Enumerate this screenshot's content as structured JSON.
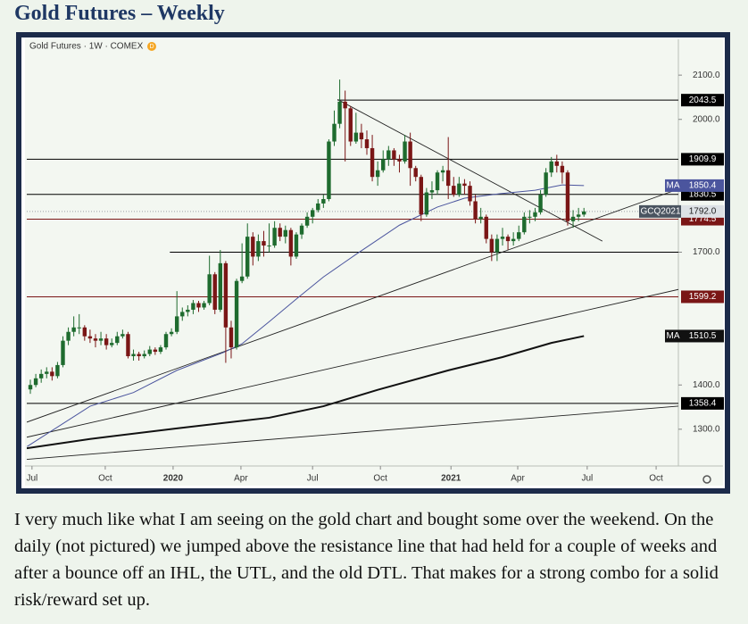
{
  "title": "Gold Futures – Weekly",
  "paragraph": "I very much like what I am seeing on the gold chart and bought some over the weekend. On the daily (not pictured) we jumped above the resistance line that had held for a couple of weeks and after a bounce off an IHL, the UTL, and the old DTL. That makes for a strong combo for a solid risk/reward set up.",
  "chart_data": {
    "type": "candlestick",
    "header": "Gold Futures · 1W · COMEX",
    "badge": "D",
    "up_color": "#1e6b2e",
    "down_color": "#7a1616",
    "ohlc": [
      [
        1390,
        1412,
        1380,
        1400
      ],
      [
        1400,
        1425,
        1395,
        1415
      ],
      [
        1415,
        1435,
        1405,
        1425
      ],
      [
        1425,
        1440,
        1415,
        1430
      ],
      [
        1430,
        1440,
        1410,
        1420
      ],
      [
        1420,
        1452,
        1415,
        1445
      ],
      [
        1445,
        1510,
        1440,
        1500
      ],
      [
        1500,
        1530,
        1490,
        1520
      ],
      [
        1520,
        1555,
        1510,
        1530
      ],
      [
        1530,
        1560,
        1515,
        1530
      ],
      [
        1530,
        1535,
        1500,
        1510
      ],
      [
        1510,
        1525,
        1495,
        1505
      ],
      [
        1505,
        1515,
        1485,
        1500
      ],
      [
        1500,
        1520,
        1490,
        1505
      ],
      [
        1505,
        1515,
        1480,
        1490
      ],
      [
        1490,
        1505,
        1485,
        1495
      ],
      [
        1495,
        1520,
        1490,
        1510
      ],
      [
        1510,
        1525,
        1505,
        1515
      ],
      [
        1515,
        1520,
        1460,
        1465
      ],
      [
        1465,
        1480,
        1455,
        1470
      ],
      [
        1470,
        1475,
        1455,
        1465
      ],
      [
        1465,
        1478,
        1460,
        1470
      ],
      [
        1470,
        1488,
        1465,
        1480
      ],
      [
        1480,
        1485,
        1468,
        1475
      ],
      [
        1475,
        1490,
        1470,
        1485
      ],
      [
        1485,
        1520,
        1480,
        1515
      ],
      [
        1515,
        1528,
        1510,
        1520
      ],
      [
        1520,
        1612,
        1515,
        1555
      ],
      [
        1555,
        1575,
        1545,
        1565
      ],
      [
        1565,
        1580,
        1555,
        1570
      ],
      [
        1570,
        1592,
        1560,
        1585
      ],
      [
        1585,
        1590,
        1565,
        1575
      ],
      [
        1575,
        1590,
        1570,
        1585
      ],
      [
        1585,
        1692,
        1580,
        1650
      ],
      [
        1650,
        1655,
        1560,
        1570
      ],
      [
        1570,
        1705,
        1565,
        1675
      ],
      [
        1675,
        1680,
        1450,
        1530
      ],
      [
        1530,
        1545,
        1460,
        1485
      ],
      [
        1485,
        1640,
        1480,
        1635
      ],
      [
        1635,
        1720,
        1630,
        1645
      ],
      [
        1645,
        1765,
        1640,
        1735
      ],
      [
        1735,
        1745,
        1670,
        1690
      ],
      [
        1690,
        1740,
        1680,
        1725
      ],
      [
        1725,
        1748,
        1690,
        1715
      ],
      [
        1715,
        1765,
        1700,
        1715
      ],
      [
        1715,
        1770,
        1710,
        1755
      ],
      [
        1755,
        1765,
        1725,
        1735
      ],
      [
        1735,
        1760,
        1720,
        1750
      ],
      [
        1750,
        1755,
        1670,
        1690
      ],
      [
        1690,
        1745,
        1685,
        1740
      ],
      [
        1740,
        1765,
        1730,
        1760
      ],
      [
        1760,
        1790,
        1755,
        1780
      ],
      [
        1780,
        1800,
        1765,
        1795
      ],
      [
        1795,
        1820,
        1790,
        1810
      ],
      [
        1810,
        1830,
        1800,
        1820
      ],
      [
        1820,
        1955,
        1815,
        1950
      ],
      [
        1950,
        2020,
        1940,
        1990
      ],
      [
        1990,
        2090,
        1980,
        2040
      ],
      [
        2040,
        2065,
        1905,
        2025
      ],
      [
        2025,
        2030,
        1940,
        1950
      ],
      [
        1950,
        2015,
        1945,
        1970
      ],
      [
        1970,
        1990,
        1935,
        1955
      ],
      [
        1955,
        1975,
        1920,
        1935
      ],
      [
        1935,
        1965,
        1860,
        1870
      ],
      [
        1870,
        1905,
        1850,
        1885
      ],
      [
        1885,
        1930,
        1880,
        1910
      ],
      [
        1910,
        1940,
        1895,
        1930
      ],
      [
        1930,
        1935,
        1895,
        1910
      ],
      [
        1910,
        1920,
        1880,
        1905
      ],
      [
        1905,
        1965,
        1900,
        1950
      ],
      [
        1950,
        1970,
        1850,
        1890
      ],
      [
        1890,
        1895,
        1860,
        1870
      ],
      [
        1870,
        1875,
        1770,
        1785
      ],
      [
        1785,
        1845,
        1780,
        1835
      ],
      [
        1835,
        1860,
        1820,
        1840
      ],
      [
        1840,
        1885,
        1830,
        1880
      ],
      [
        1880,
        1895,
        1860,
        1885
      ],
      [
        1885,
        1960,
        1820,
        1850
      ],
      [
        1850,
        1870,
        1825,
        1830
      ],
      [
        1830,
        1870,
        1825,
        1855
      ],
      [
        1855,
        1865,
        1830,
        1850
      ],
      [
        1850,
        1860,
        1805,
        1815
      ],
      [
        1815,
        1830,
        1765,
        1775
      ],
      [
        1775,
        1800,
        1765,
        1780
      ],
      [
        1780,
        1785,
        1720,
        1730
      ],
      [
        1730,
        1740,
        1680,
        1700
      ],
      [
        1700,
        1740,
        1680,
        1730
      ],
      [
        1730,
        1755,
        1715,
        1735
      ],
      [
        1735,
        1740,
        1705,
        1725
      ],
      [
        1725,
        1745,
        1715,
        1730
      ],
      [
        1730,
        1760,
        1725,
        1745
      ],
      [
        1745,
        1790,
        1740,
        1780
      ],
      [
        1780,
        1795,
        1765,
        1780
      ],
      [
        1780,
        1800,
        1770,
        1790
      ],
      [
        1790,
        1840,
        1785,
        1830
      ],
      [
        1830,
        1890,
        1825,
        1880
      ],
      [
        1880,
        1915,
        1870,
        1905
      ],
      [
        1905,
        1920,
        1880,
        1895
      ],
      [
        1895,
        1905,
        1855,
        1880
      ],
      [
        1880,
        1885,
        1760,
        1770
      ],
      [
        1770,
        1795,
        1755,
        1780
      ],
      [
        1780,
        1800,
        1770,
        1785
      ],
      [
        1785,
        1800,
        1780,
        1792
      ]
    ],
    "xlim": [
      -0.66,
      119.4
    ],
    "xticks": [
      {
        "value": 0.3,
        "label": "Jul"
      },
      {
        "value": 13.8,
        "label": "Oct"
      },
      {
        "value": 26.3,
        "label": "2020"
      },
      {
        "value": 38.8,
        "label": "Apr"
      },
      {
        "value": 52,
        "label": "Jul"
      },
      {
        "value": 64.5,
        "label": "Oct"
      },
      {
        "value": 77.5,
        "label": "2021"
      },
      {
        "value": 89.8,
        "label": "Apr"
      },
      {
        "value": 102.6,
        "label": "Jul"
      },
      {
        "value": 115.3,
        "label": "Oct"
      }
    ],
    "ylim": [
      1221,
      2185
    ],
    "yticks": [
      {
        "value": 2100,
        "label": "2100.0"
      },
      {
        "value": 2000,
        "label": "2000.0"
      },
      {
        "value": 1700,
        "label": "1700.0"
      },
      {
        "value": 1400,
        "label": "1400.0"
      },
      {
        "value": 1300,
        "label": "1300.0"
      }
    ],
    "moving_averages": [
      {
        "name": "MA",
        "color": "#4b559e",
        "width": 1,
        "x": [
          -0.6,
          11,
          19,
          27,
          35.5,
          39,
          44,
          49,
          54,
          60,
          68,
          75,
          80,
          86.5,
          93,
          98,
          102
        ],
        "values": [
          1261,
          1352,
          1383,
          1433,
          1473,
          1493,
          1543,
          1594,
          1644,
          1695,
          1761,
          1802,
          1822,
          1832,
          1840,
          1852,
          1850.4
        ]
      },
      {
        "name": "MA",
        "color": "#111111",
        "width": 2,
        "x": [
          -0.66,
          11,
          27,
          44,
          54,
          64,
          77,
          87,
          96,
          102
        ],
        "values": [
          1257,
          1278,
          1302,
          1326,
          1352,
          1389,
          1433,
          1463,
          1495,
          1510.5
        ]
      }
    ],
    "levels": [
      {
        "value": 2043.5,
        "color": "#000000",
        "from": 56.6,
        "tag": true
      },
      {
        "value": 1909.9,
        "color": "#000000",
        "from": -0.66,
        "tag": true
      },
      {
        "value": 1830.5,
        "color": "#000000",
        "from": -0.66,
        "tag": true
      },
      {
        "value": 1774.5,
        "color": "#7a1616",
        "from": -0.66,
        "tag": true
      },
      {
        "value": 1700,
        "color": "#000000",
        "from": 25.7,
        "tag": false
      },
      {
        "value": 1599.2,
        "color": "#7a1616",
        "from": -0.66,
        "tag": true
      },
      {
        "value": 1358.4,
        "color": "#000000",
        "from": -0.66,
        "tag": true
      }
    ],
    "last_price": {
      "name": "GCQ2021",
      "value": 1792,
      "label": "1792.0",
      "color": "#4a5460"
    },
    "trendlines": [
      {
        "x": [
          56.6,
          105.4
        ],
        "y": [
          2045,
          1725
        ]
      },
      {
        "x": [
          -0.66,
          120.2
        ],
        "y": [
          1316,
          1846
        ]
      },
      {
        "x": [
          -0.66,
          120.2
        ],
        "y": [
          1282,
          1618
        ]
      },
      {
        "x": [
          -0.66,
          120.2
        ],
        "y": [
          1232,
          1353
        ]
      }
    ]
  }
}
